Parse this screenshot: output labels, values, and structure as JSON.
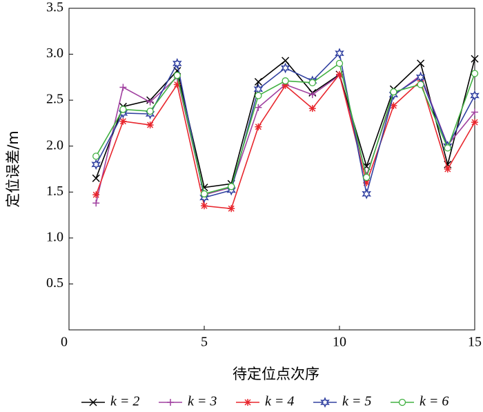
{
  "chart_data": {
    "type": "line",
    "x_label": "待定位点次序",
    "y_label": "定位误差/m",
    "x": [
      1,
      2,
      3,
      4,
      5,
      6,
      7,
      8,
      9,
      10,
      11,
      12,
      13,
      14,
      15
    ],
    "xlim": [
      0,
      15
    ],
    "xticks": [
      0,
      5,
      10,
      15
    ],
    "ylim": [
      0,
      3.5
    ],
    "yticks": [
      {
        "value": 0.5,
        "label": "0.5"
      },
      {
        "value": 1,
        "label": "1.0"
      },
      1.5,
      {
        "value": 2,
        "label": "2.0"
      },
      2.5,
      {
        "value": 3,
        "label": "3.0"
      },
      3.5
    ],
    "series": [
      {
        "name": "k = 2",
        "color": "#000000",
        "marker": "x",
        "values": [
          1.65,
          2.43,
          2.5,
          2.82,
          1.55,
          1.59,
          2.7,
          2.93,
          2.58,
          2.78,
          1.78,
          2.62,
          2.9,
          1.8,
          2.95
        ]
      },
      {
        "name": "k = 3",
        "color": "#a040a0",
        "marker": "+",
        "values": [
          1.38,
          2.64,
          2.48,
          2.75,
          1.47,
          1.55,
          2.42,
          2.67,
          2.56,
          2.77,
          1.68,
          2.55,
          2.77,
          2.01,
          2.37
        ]
      },
      {
        "name": "k = 4",
        "color": "#e8262d",
        "marker": "*",
        "values": [
          1.47,
          2.27,
          2.23,
          2.67,
          1.35,
          1.32,
          2.21,
          2.66,
          2.41,
          2.78,
          1.6,
          2.44,
          2.71,
          1.75,
          2.26
        ]
      },
      {
        "name": "k = 5",
        "color": "#3040a0",
        "marker": "star",
        "values": [
          1.8,
          2.36,
          2.35,
          2.9,
          1.44,
          1.52,
          2.62,
          2.85,
          2.71,
          3.01,
          1.48,
          2.56,
          2.75,
          2.0,
          2.55
        ]
      },
      {
        "name": "k = 6",
        "color": "#40b040",
        "marker": "o",
        "values": [
          1.89,
          2.4,
          2.38,
          2.77,
          1.48,
          1.56,
          2.55,
          2.71,
          2.69,
          2.9,
          1.66,
          2.59,
          2.67,
          1.98,
          2.79
        ]
      }
    ],
    "legend": "bottom"
  }
}
